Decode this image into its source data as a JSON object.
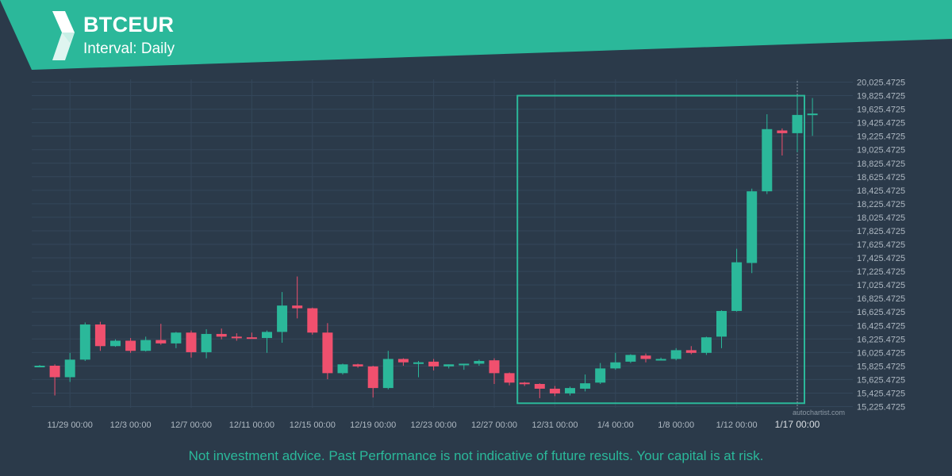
{
  "header": {
    "symbol": "BTCEUR",
    "interval": "Interval: Daily"
  },
  "colors": {
    "background": "#2b3a4a",
    "accent": "#2bb89a",
    "up_candle": "#2bb89a",
    "down_candle": "#f0506e",
    "grid": "#34475a",
    "axis_text": "#aeb8c2"
  },
  "watermark": "autochartist.com",
  "disclaimer": "Not investment advice. Past Performance is not indicative of future results. Your capital is at risk.",
  "chart_data": {
    "type": "candlestick",
    "x_tick_labels": [
      "11/29 00:00",
      "12/3 00:00",
      "12/7 00:00",
      "12/11 00:00",
      "12/15 00:00",
      "12/19 00:00",
      "12/23 00:00",
      "12/27 00:00",
      "12/31 00:00",
      "1/4 00:00",
      "1/8 00:00",
      "1/12 00:00",
      "1/17 00:00"
    ],
    "y_tick_labels": [
      "20,025.4725",
      "19,825.4725",
      "19,625.4725",
      "19,425.4725",
      "19,225.4725",
      "19,025.4725",
      "18,825.4725",
      "18,625.4725",
      "18,425.4725",
      "18,225.4725",
      "18,025.4725",
      "17,825.4725",
      "17,625.4725",
      "17,425.4725",
      "17,225.4725",
      "17,025.4725",
      "16,825.4725",
      "16,625.4725",
      "16,425.4725",
      "16,225.4725",
      "16,025.4725",
      "15,825.4725",
      "15,625.4725",
      "15,425.4725",
      "15,225.4725"
    ],
    "ylim": [
      15225.4725,
      20025.4725
    ],
    "candles": [
      {
        "o": 15830,
        "h": 15840,
        "l": 15820,
        "c": 15830
      },
      {
        "o": 15830,
        "h": 15850,
        "l": 15390,
        "c": 15660
      },
      {
        "o": 15660,
        "h": 16020,
        "l": 15590,
        "c": 15920
      },
      {
        "o": 15920,
        "h": 16470,
        "l": 15900,
        "c": 16440
      },
      {
        "o": 16440,
        "h": 16480,
        "l": 16050,
        "c": 16120
      },
      {
        "o": 16120,
        "h": 16220,
        "l": 16110,
        "c": 16200
      },
      {
        "o": 16200,
        "h": 16240,
        "l": 16020,
        "c": 16050
      },
      {
        "o": 16050,
        "h": 16260,
        "l": 16040,
        "c": 16210
      },
      {
        "o": 16210,
        "h": 16450,
        "l": 16140,
        "c": 16160
      },
      {
        "o": 16160,
        "h": 16330,
        "l": 16090,
        "c": 16320
      },
      {
        "o": 16320,
        "h": 16350,
        "l": 15950,
        "c": 16030
      },
      {
        "o": 16030,
        "h": 16370,
        "l": 15940,
        "c": 16300
      },
      {
        "o": 16300,
        "h": 16380,
        "l": 16220,
        "c": 16260
      },
      {
        "o": 16260,
        "h": 16310,
        "l": 16200,
        "c": 16250
      },
      {
        "o": 16250,
        "h": 16320,
        "l": 16230,
        "c": 16240
      },
      {
        "o": 16240,
        "h": 16350,
        "l": 16020,
        "c": 16330
      },
      {
        "o": 16330,
        "h": 16920,
        "l": 16170,
        "c": 16720
      },
      {
        "o": 16720,
        "h": 17150,
        "l": 16530,
        "c": 16680
      },
      {
        "o": 16680,
        "h": 16690,
        "l": 16290,
        "c": 16320
      },
      {
        "o": 16320,
        "h": 16460,
        "l": 15630,
        "c": 15720
      },
      {
        "o": 15720,
        "h": 15860,
        "l": 15700,
        "c": 15850
      },
      {
        "o": 15850,
        "h": 15860,
        "l": 15800,
        "c": 15820
      },
      {
        "o": 15820,
        "h": 15830,
        "l": 15360,
        "c": 15500
      },
      {
        "o": 15500,
        "h": 16050,
        "l": 15480,
        "c": 15930
      },
      {
        "o": 15930,
        "h": 15940,
        "l": 15830,
        "c": 15880
      },
      {
        "o": 15880,
        "h": 15900,
        "l": 15660,
        "c": 15880
      },
      {
        "o": 15890,
        "h": 15930,
        "l": 15760,
        "c": 15820
      },
      {
        "o": 15820,
        "h": 15850,
        "l": 15790,
        "c": 15850
      },
      {
        "o": 15850,
        "h": 15860,
        "l": 15770,
        "c": 15860
      },
      {
        "o": 15860,
        "h": 15920,
        "l": 15830,
        "c": 15900
      },
      {
        "o": 15910,
        "h": 15940,
        "l": 15560,
        "c": 15720
      },
      {
        "o": 15720,
        "h": 15730,
        "l": 15540,
        "c": 15580
      },
      {
        "o": 15580,
        "h": 15590,
        "l": 15530,
        "c": 15560
      },
      {
        "o": 15560,
        "h": 15570,
        "l": 15350,
        "c": 15490
      },
      {
        "o": 15490,
        "h": 15530,
        "l": 15380,
        "c": 15420
      },
      {
        "o": 15420,
        "h": 15520,
        "l": 15390,
        "c": 15500
      },
      {
        "o": 15490,
        "h": 15700,
        "l": 15450,
        "c": 15570
      },
      {
        "o": 15580,
        "h": 15870,
        "l": 15560,
        "c": 15790
      },
      {
        "o": 15790,
        "h": 16020,
        "l": 15770,
        "c": 15880
      },
      {
        "o": 15890,
        "h": 16000,
        "l": 15870,
        "c": 15990
      },
      {
        "o": 15980,
        "h": 16010,
        "l": 15880,
        "c": 15930
      },
      {
        "o": 15930,
        "h": 15950,
        "l": 15920,
        "c": 15930
      },
      {
        "o": 15930,
        "h": 16090,
        "l": 15910,
        "c": 16060
      },
      {
        "o": 16060,
        "h": 16120,
        "l": 16000,
        "c": 16020
      },
      {
        "o": 16020,
        "h": 16260,
        "l": 15990,
        "c": 16250
      },
      {
        "o": 16260,
        "h": 16650,
        "l": 16090,
        "c": 16640
      },
      {
        "o": 16640,
        "h": 17560,
        "l": 16630,
        "c": 17360
      },
      {
        "o": 17350,
        "h": 18450,
        "l": 17200,
        "c": 18410
      },
      {
        "o": 18410,
        "h": 19550,
        "l": 18370,
        "c": 19330
      },
      {
        "o": 19310,
        "h": 19340,
        "l": 18940,
        "c": 19270
      },
      {
        "o": 19270,
        "h": 19820,
        "l": 18990,
        "c": 19540
      },
      {
        "o": 19540,
        "h": 19790,
        "l": 19230,
        "c": 19560
      }
    ],
    "pattern_box": {
      "start_index": 32,
      "end_index": 50,
      "low": 15275,
      "high": 19825
    },
    "current_marker_index": 50,
    "grid": true
  }
}
